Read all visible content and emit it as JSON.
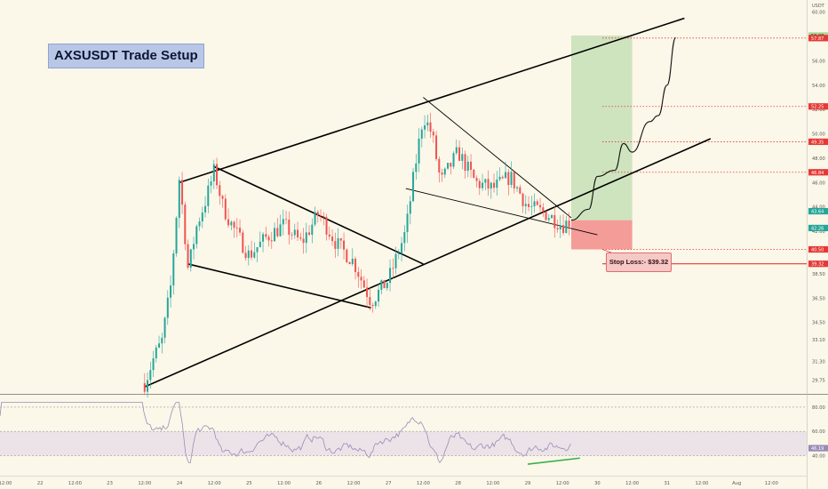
{
  "title": "AXSUSDT Trade Setup",
  "currency_label": "USDT",
  "stop_loss_label": "Stop Loss:- $39.32",
  "colors": {
    "background": "#fbf7e9",
    "bull_candle": "#26a69a",
    "bear_candle": "#ef5350",
    "target_zone": "#a9d69a",
    "stop_zone": "#f28c8a",
    "level_line": "#e53935",
    "rsi_line": "#9b8bb8",
    "rsi_divergence": "#3bb04b",
    "trendline": "#000000"
  },
  "chart_data": {
    "type": "line",
    "symbol": "AXSUSDT",
    "y_axis": {
      "ylim": [
        28.7,
        61.0
      ],
      "tick_labels": [
        "60.00",
        "58.00",
        "56.00",
        "54.00",
        "52.00",
        "50.00",
        "48.00",
        "46.00",
        "44.00",
        "42.00",
        "40.50",
        "38.50",
        "36.50",
        "34.50",
        "33.10",
        "31.30",
        "29.75"
      ]
    },
    "x_axis": {
      "tick_labels": [
        "12:00",
        "22",
        "12:00",
        "23",
        "12:00",
        "24",
        "12:00",
        "25",
        "12:00",
        "26",
        "12:00",
        "27",
        "12:00",
        "28",
        "12:00",
        "29",
        "12:00",
        "30",
        "12:00",
        "31",
        "12:00",
        "Aug",
        "12:00"
      ]
    },
    "price_series": {
      "name": "AXSUSDT",
      "points": [
        {
          "t": "23 12:00",
          "price": 29.5
        },
        {
          "t": "23 15:00",
          "price": 31.5
        },
        {
          "t": "23 18:00",
          "price": 33.0
        },
        {
          "t": "23 21:00",
          "price": 37.5
        },
        {
          "t": "24 00:00",
          "price": 46.5
        },
        {
          "t": "24 03:00",
          "price": 38.8
        },
        {
          "t": "24 06:00",
          "price": 42.5
        },
        {
          "t": "24 09:00",
          "price": 44.5
        },
        {
          "t": "24 12:00",
          "price": 47.0
        },
        {
          "t": "24 15:00",
          "price": 44.0
        },
        {
          "t": "24 18:00",
          "price": 42.5
        },
        {
          "t": "25 00:00",
          "price": 40.0
        },
        {
          "t": "25 06:00",
          "price": 41.5
        },
        {
          "t": "25 12:00",
          "price": 42.5
        },
        {
          "t": "25 18:00",
          "price": 41.0
        },
        {
          "t": "26 00:00",
          "price": 43.5
        },
        {
          "t": "26 06:00",
          "price": 41.0
        },
        {
          "t": "26 12:00",
          "price": 39.5
        },
        {
          "t": "26 18:00",
          "price": 36.2
        },
        {
          "t": "27 00:00",
          "price": 38.0
        },
        {
          "t": "27 06:00",
          "price": 42.0
        },
        {
          "t": "27 09:00",
          "price": 47.0
        },
        {
          "t": "27 12:00",
          "price": 51.5
        },
        {
          "t": "27 15:00",
          "price": 50.0
        },
        {
          "t": "27 18:00",
          "price": 46.0
        },
        {
          "t": "28 00:00",
          "price": 48.5
        },
        {
          "t": "28 06:00",
          "price": 46.0
        },
        {
          "t": "28 12:00",
          "price": 45.5
        },
        {
          "t": "28 18:00",
          "price": 46.5
        },
        {
          "t": "29 00:00",
          "price": 44.0
        },
        {
          "t": "29 06:00",
          "price": 43.5
        },
        {
          "t": "29 12:00",
          "price": 42.5
        },
        {
          "t": "29 15:00",
          "price": 42.9
        }
      ]
    },
    "projection": {
      "name": "projected path",
      "points": [
        {
          "t": "29 15:00",
          "price": 42.9
        },
        {
          "t": "29 21:00",
          "price": 43.8
        },
        {
          "t": "30 00:00",
          "price": 46.5
        },
        {
          "t": "30 06:00",
          "price": 47.0
        },
        {
          "t": "30 09:00",
          "price": 49.2
        },
        {
          "t": "30 12:00",
          "price": 48.5
        },
        {
          "t": "30 18:00",
          "price": 51.0
        },
        {
          "t": "30 21:00",
          "price": 51.5
        },
        {
          "t": "31 00:00",
          "price": 54.0
        },
        {
          "t": "31 03:00",
          "price": 57.9
        }
      ]
    },
    "price_levels": [
      {
        "label": "58.08",
        "value": 58.08,
        "style": "target"
      },
      {
        "label": "57.87",
        "value": 57.87,
        "style": "red"
      },
      {
        "label": "52.25",
        "value": 52.25,
        "style": "red"
      },
      {
        "label": "49.35",
        "value": 49.35,
        "style": "red"
      },
      {
        "label": "46.84",
        "value": 46.84,
        "style": "red"
      },
      {
        "label": "43.64",
        "value": 43.64,
        "style": "green"
      },
      {
        "label": "42.26",
        "value": 42.26,
        "style": "green"
      },
      {
        "label": "40.50",
        "value": 40.5,
        "style": "red"
      },
      {
        "label": "39.32",
        "value": 39.32,
        "style": "stop"
      }
    ],
    "zones": [
      {
        "name": "target",
        "from_price": 42.9,
        "to_price": 58.08,
        "from_t": "29 15:00",
        "to_t": "30 12:00"
      },
      {
        "name": "stop",
        "from_price": 40.5,
        "to_price": 42.9,
        "from_t": "29 15:00",
        "to_t": "30 12:00"
      }
    ],
    "trendlines": [
      {
        "name": "upper-channel",
        "from": {
          "t": "24 00:00",
          "price": 46.0
        },
        "to": {
          "t": "31 06:00",
          "price": 59.5
        }
      },
      {
        "name": "lower-channel",
        "from": {
          "t": "23 12:00",
          "price": 29.2
        },
        "to": {
          "t": "31 15:00",
          "price": 49.6
        }
      },
      {
        "name": "flag1-top",
        "from": {
          "t": "24 12:00",
          "price": 47.3
        },
        "to": {
          "t": "27 12:00",
          "price": 39.3
        }
      },
      {
        "name": "flag1-bottom",
        "from": {
          "t": "24 03:00",
          "price": 39.3
        },
        "to": {
          "t": "26 18:00",
          "price": 35.7
        }
      },
      {
        "name": "flag2-top",
        "from": {
          "t": "27 12:00",
          "price": 53.0
        },
        "to": {
          "t": "29 15:00",
          "price": 43.1
        }
      },
      {
        "name": "flag2-bottom",
        "from": {
          "t": "27 06:00",
          "price": 45.5
        },
        "to": {
          "t": "30 00:00",
          "price": 41.7
        }
      }
    ],
    "rsi": {
      "name": "RSI",
      "last_value_label": "46.19",
      "tick_labels": [
        "80.00",
        "60.00",
        "40.00"
      ],
      "ylim": [
        25,
        88
      ],
      "band": [
        40,
        60
      ],
      "divergence": {
        "from": {
          "t": "29 00:00",
          "rsi": 33
        },
        "to": {
          "t": "29 18:00",
          "rsi": 38
        }
      }
    }
  }
}
